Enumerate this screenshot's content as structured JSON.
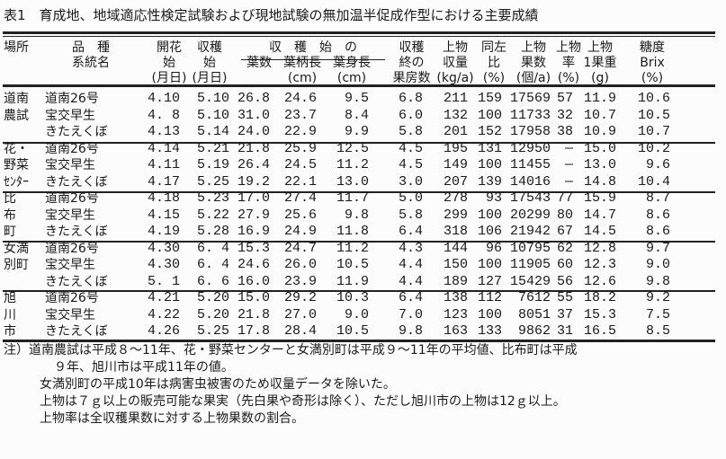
{
  "title": "表1　育成地、地域適応性検定試験および現地試験の無加温半促成作型における主要成績",
  "headers": {
    "site": "場所",
    "variety": [
      "品　種",
      "系統名"
    ],
    "flower": [
      "開花",
      "始",
      "(月日)"
    ],
    "harvest": [
      "収穫",
      "始",
      "(月日)"
    ],
    "group": "収　穫　始　の",
    "leaves": "葉数",
    "petiole": [
      "葉柄長",
      "(cm)"
    ],
    "blade": [
      "葉身長",
      "(cm)"
    ],
    "trusses": [
      "収穫",
      "終の",
      "果房数"
    ],
    "yield": [
      "上物",
      "収量",
      "(kg/a)"
    ],
    "ratio": [
      "同左",
      "比",
      "(%)"
    ],
    "count": [
      "上物",
      "果数",
      "(個/a)"
    ],
    "rate": [
      "上物",
      "率",
      "(%)"
    ],
    "weight": [
      "上物",
      "1果重",
      "(g)"
    ],
    "brix": [
      "糖度",
      "Brix",
      "(%)"
    ]
  },
  "groups": [
    {
      "site": [
        "道南",
        "農試"
      ],
      "rows": [
        [
          "道南26号",
          "4.10",
          "5.10",
          "26.8",
          "24.6",
          "9.5",
          "6.8",
          "211",
          "159",
          "17569",
          "57",
          "11.9",
          "10.6"
        ],
        [
          "宝交早生",
          "4. 8",
          "5.10",
          "31.0",
          "23.7",
          "8.4",
          "6.0",
          "132",
          "100",
          "11733",
          "32",
          "10.7",
          "10.5"
        ],
        [
          "きたえくぼ",
          "4.13",
          "5.14",
          "24.0",
          "22.9",
          "9.9",
          "5.8",
          "201",
          "152",
          "17958",
          "38",
          "10.9",
          "10.7"
        ]
      ]
    },
    {
      "site": [
        "花・",
        "野菜",
        "ｾﾝﾀｰ"
      ],
      "rows": [
        [
          "道南26号",
          "4.14",
          "5.21",
          "21.8",
          "25.9",
          "12.5",
          "4.5",
          "195",
          "131",
          "12950",
          "—",
          "15.0",
          "10.2"
        ],
        [
          "宝交早生",
          "4.11",
          "5.19",
          "26.4",
          "24.5",
          "11.2",
          "4.5",
          "149",
          "100",
          "11455",
          "—",
          "13.0",
          "9.6"
        ],
        [
          "きたえくぼ",
          "4.17",
          "5.25",
          "19.2",
          "22.1",
          "13.0",
          "3.0",
          "207",
          "139",
          "14016",
          "—",
          "14.8",
          "10.4"
        ]
      ]
    },
    {
      "site": [
        "比",
        "布",
        "町"
      ],
      "rows": [
        [
          "道南26号",
          "4.18",
          "5.23",
          "17.0",
          "27.4",
          "11.7",
          "5.0",
          "278",
          "93",
          "17543",
          "77",
          "15.9",
          "8.7"
        ],
        [
          "宝交早生",
          "4.15",
          "5.22",
          "27.9",
          "25.6",
          "9.8",
          "5.8",
          "299",
          "100",
          "20299",
          "80",
          "14.7",
          "8.6"
        ],
        [
          "きたえくぼ",
          "4.19",
          "5.28",
          "16.9",
          "24.9",
          "11.8",
          "6.4",
          "318",
          "106",
          "21942",
          "67",
          "14.5",
          "8.6"
        ]
      ]
    },
    {
      "site": [
        "女満",
        "別町"
      ],
      "rows": [
        [
          "道南26号",
          "4.30",
          "6. 4",
          "15.3",
          "24.7",
          "11.2",
          "4.3",
          "144",
          "96",
          "10795",
          "62",
          "12.8",
          "9.7"
        ],
        [
          "宝交早生",
          "4.30",
          "6. 4",
          "24.6",
          "26.0",
          "10.5",
          "4.4",
          "150",
          "100",
          "11905",
          "60",
          "12.3",
          "9.0"
        ],
        [
          "きたえくぼ",
          "5. 1",
          "6. 6",
          "16.0",
          "23.9",
          "11.9",
          "4.4",
          "189",
          "127",
          "15429",
          "56",
          "12.6",
          "9.8"
        ]
      ]
    },
    {
      "site": [
        "旭",
        "川",
        "市"
      ],
      "rows": [
        [
          "道南26号",
          "4.21",
          "5.20",
          "15.0",
          "29.2",
          "10.3",
          "6.4",
          "138",
          "112",
          "7612",
          "55",
          "18.2",
          "9.2"
        ],
        [
          "宝交早生",
          "4.22",
          "5.20",
          "21.8",
          "27.0",
          "9.0",
          "7.0",
          "123",
          "100",
          "8051",
          "37",
          "15.3",
          "7.5"
        ],
        [
          "きたえくぼ",
          "4.26",
          "5.25",
          "17.8",
          "28.4",
          "10.5",
          "9.8",
          "163",
          "133",
          "9862",
          "31",
          "16.5",
          "8.5"
        ]
      ]
    }
  ],
  "notes": [
    "注）道南農試は平成８～11年、花・野菜センターと女満別町は平成９～11年の平均値、比布町は平成",
    "９年、旭川市は平成11年の値。",
    "女満別町の平成10年は病害虫被害のため収量データを除いた。",
    "上物は７ｇ以上の販売可能な果実（先白果や奇形は除く）、ただし旭川市の上物は12ｇ以上。",
    "上物率は全収穫果数に対する上物果数の割合。"
  ]
}
